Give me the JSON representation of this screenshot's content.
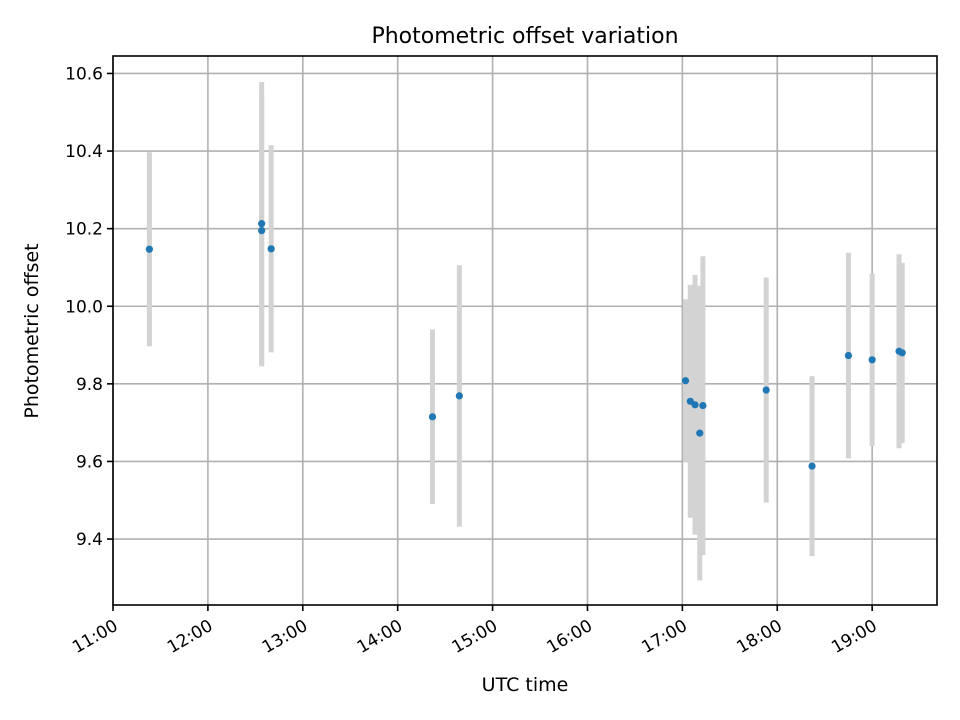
{
  "chart_data": {
    "type": "scatter",
    "title": "Photometric offset variation",
    "xlabel": "UTC time",
    "ylabel": "Photometric offset",
    "xlim": [
      "11:00",
      "19:41"
    ],
    "ylim": [
      9.23,
      10.645
    ],
    "grid": true,
    "xticks": [
      "11:00",
      "12:00",
      "13:00",
      "14:00",
      "15:00",
      "16:00",
      "17:00",
      "18:00",
      "19:00"
    ],
    "yticks": [
      9.4,
      9.6,
      9.8,
      10.0,
      10.2,
      10.4,
      10.6
    ],
    "ytick_labels": [
      "9.4",
      "9.6",
      "9.8",
      "10.0",
      "10.2",
      "10.4",
      "10.6"
    ],
    "series": [
      {
        "color": "#1f77b4",
        "errorbar_color": "#d3d3d3",
        "points": [
          {
            "x": "11:23",
            "y": 10.147,
            "err": 0.25
          },
          {
            "x": "12:34",
            "y": 10.213,
            "err": 0.365
          },
          {
            "x": "12:34",
            "y": 10.195,
            "err": 0.35
          },
          {
            "x": "12:40",
            "y": 10.148,
            "err": 0.267
          },
          {
            "x": "14:22",
            "y": 9.715,
            "err": 0.225
          },
          {
            "x": "14:39",
            "y": 9.769,
            "err": 0.337
          },
          {
            "x": "17:02",
            "y": 9.808,
            "err": 0.21
          },
          {
            "x": "17:05",
            "y": 9.755,
            "err": 0.3
          },
          {
            "x": "17:08",
            "y": 9.746,
            "err": 0.335
          },
          {
            "x": "17:11",
            "y": 9.673,
            "err": 0.38
          },
          {
            "x": "17:13",
            "y": 9.744,
            "err": 0.385
          },
          {
            "x": "17:53",
            "y": 9.784,
            "err": 0.29
          },
          {
            "x": "18:22",
            "y": 9.588,
            "err": 0.232
          },
          {
            "x": "18:45",
            "y": 9.873,
            "err": 0.265
          },
          {
            "x": "19:00",
            "y": 9.862,
            "err": 0.222
          },
          {
            "x": "19:17",
            "y": 9.884,
            "err": 0.25
          },
          {
            "x": "19:19",
            "y": 9.88,
            "err": 0.232
          }
        ]
      }
    ]
  }
}
